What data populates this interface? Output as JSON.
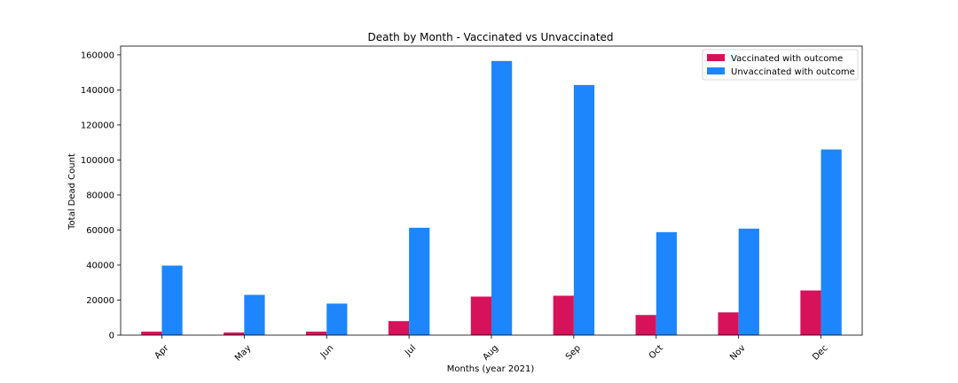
{
  "chart_data": {
    "type": "bar",
    "title": "Death by Month - Vaccinated vs Unvaccinated",
    "xlabel": "Months (year 2021)",
    "ylabel": "Total Dead Count",
    "categories": [
      "Apr",
      "May",
      "Jun",
      "Jul",
      "Aug",
      "Sep",
      "Oct",
      "Nov",
      "Dec"
    ],
    "series": [
      {
        "name": "Vaccinated with outcome",
        "color": "#d6135a",
        "values": [
          2000,
          1500,
          2000,
          8000,
          22000,
          22500,
          11500,
          13000,
          25500
        ]
      },
      {
        "name": "Unvaccinated with outcome",
        "color": "#1e86fd",
        "values": [
          39700,
          23000,
          18000,
          61300,
          156500,
          142800,
          58800,
          60800,
          106000
        ]
      }
    ],
    "ylim": [
      0,
      165000
    ],
    "yticks": [
      0,
      20000,
      40000,
      60000,
      80000,
      100000,
      120000,
      140000,
      160000
    ],
    "legend_position": "top-right",
    "grid": false
  }
}
